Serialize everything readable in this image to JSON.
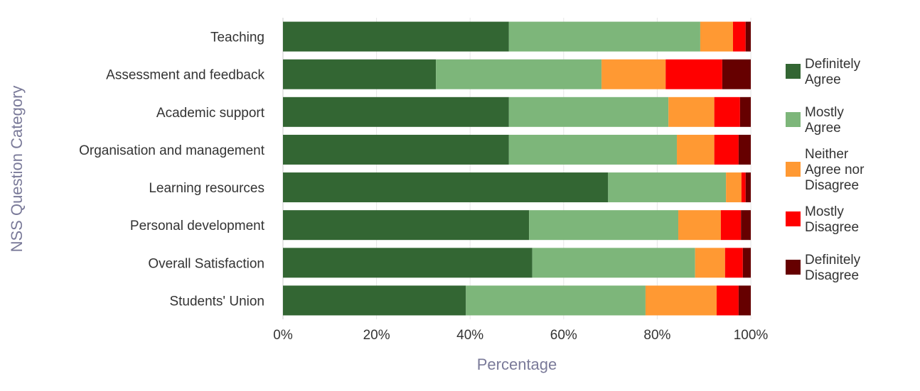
{
  "chart_data": {
    "type": "bar",
    "orientation": "horizontal",
    "stacked": true,
    "xlabel": "Percentage",
    "ylabel": "NSS Question Category",
    "xlim": [
      0,
      100
    ],
    "xticks": [
      "0%",
      "20%",
      "40%",
      "60%",
      "80%",
      "100%"
    ],
    "grid": true,
    "legend_position": "right",
    "categories": [
      "Teaching",
      "Assessment and feedback",
      "Academic support",
      "Organisation and management",
      "Learning resources",
      "Personal development",
      "Overall Satisfaction",
      "Students' Union"
    ],
    "series": [
      {
        "name": "Definitely Agree",
        "legend_lines": [
          "Definitely",
          "Agree"
        ],
        "color": "#336633",
        "values": [
          48.3,
          32.7,
          48.3,
          48.3,
          69.5,
          52.6,
          53.3,
          39.1
        ]
      },
      {
        "name": "Mostly Agree",
        "legend_lines": [
          "Mostly",
          "Agree"
        ],
        "color": "#7db67a",
        "values": [
          40.9,
          35.4,
          34.1,
          35.9,
          25.2,
          31.9,
          34.8,
          38.4
        ]
      },
      {
        "name": "Neither Agree nor Disagree",
        "legend_lines": [
          "Neither",
          "Agree nor",
          "Disagree"
        ],
        "color": "#ff9933",
        "values": [
          7.0,
          13.7,
          9.8,
          8.0,
          3.3,
          9.1,
          6.4,
          15.2
        ]
      },
      {
        "name": "Mostly Disagree",
        "legend_lines": [
          "Mostly",
          "Disagree"
        ],
        "color": "#ff0000",
        "values": [
          2.7,
          12.1,
          5.5,
          5.2,
          0.9,
          4.3,
          3.8,
          4.7
        ]
      },
      {
        "name": "Definitely Disagree",
        "legend_lines": [
          "Definitely",
          "Disagree"
        ],
        "color": "#660000",
        "values": [
          1.1,
          6.1,
          2.3,
          2.6,
          1.1,
          2.1,
          1.7,
          2.6
        ]
      }
    ]
  }
}
